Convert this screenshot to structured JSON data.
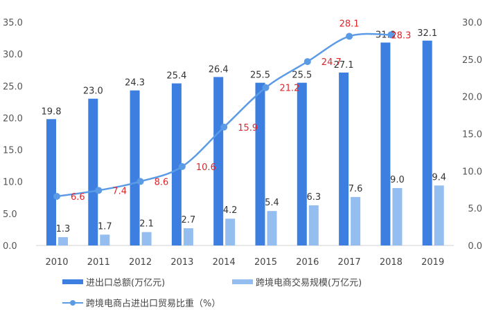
{
  "chart_data": {
    "type": "bar+line",
    "categories": [
      "2010",
      "2011",
      "2012",
      "2013",
      "2014",
      "2015",
      "2016",
      "2017",
      "2018",
      "2019"
    ],
    "series": [
      {
        "name": "进出口总额(万亿元)",
        "type": "bar",
        "axis": "left",
        "color": "#3d7fe0",
        "values": [
          19.8,
          23.0,
          24.3,
          25.4,
          26.4,
          25.5,
          25.5,
          27.1,
          31.8,
          32.1
        ]
      },
      {
        "name": "跨境电商交易规模(万亿元)",
        "type": "bar",
        "axis": "left",
        "color": "#94bdf0",
        "values": [
          1.3,
          1.7,
          2.1,
          2.7,
          4.2,
          5.4,
          6.3,
          7.6,
          9.0,
          9.4
        ]
      },
      {
        "name": "跨境电商占进出口贸易比重（%）",
        "type": "line",
        "axis": "right",
        "color": "#5b9be6",
        "label_color": "#e0242a",
        "values": [
          6.6,
          7.4,
          8.6,
          10.6,
          15.9,
          21.2,
          24.7,
          28.1,
          28.3,
          null
        ]
      }
    ],
    "y_left": {
      "lim": [
        0,
        35
      ],
      "ticks": [
        "0.0",
        "5.0",
        "10.0",
        "15.0",
        "20.0",
        "25.0",
        "30.0",
        "35.0"
      ]
    },
    "y_right": {
      "lim": [
        0,
        30
      ],
      "ticks": [
        "0.0",
        "5.0",
        "10.0",
        "15.0",
        "20.0",
        "25.0",
        "30.0"
      ]
    },
    "grid": false,
    "legend": "bottom"
  }
}
